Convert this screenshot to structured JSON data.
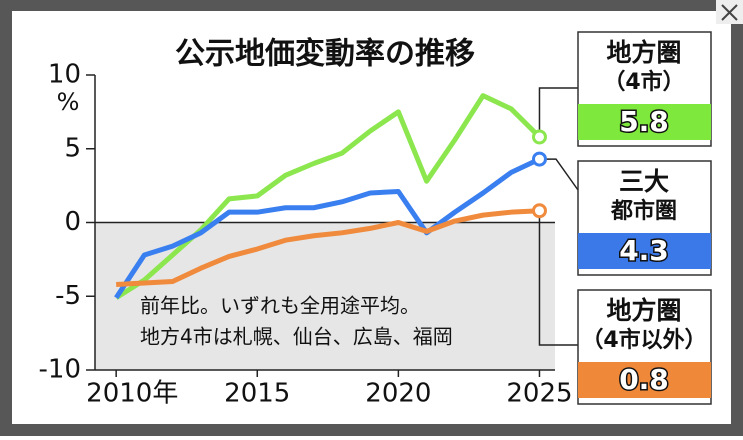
{
  "chart_data": {
    "type": "line",
    "title": "公示地価変動率の推移",
    "y_unit": "%",
    "notes": [
      "前年比。いずれも全用途平均。",
      "地方4市は札幌、仙台、広島、福岡"
    ],
    "x": [
      2010,
      2011,
      2012,
      2013,
      2014,
      2015,
      2016,
      2017,
      2018,
      2019,
      2020,
      2021,
      2022,
      2023,
      2024,
      2025
    ],
    "xlim": [
      2009.25,
      2025.55
    ],
    "xticks": [
      {
        "value": 2010,
        "label": "2010年"
      },
      2015,
      2020,
      2025
    ],
    "ylim": [
      -10,
      10
    ],
    "yticks": [
      -10,
      -5,
      0,
      5,
      10
    ],
    "shade_negative": true,
    "series": [
      {
        "name": [
          "地方圏",
          "（4市）"
        ],
        "color": "#8ce64e",
        "band_color": "#7ee83c",
        "values": [
          -5.1,
          -3.9,
          -2.2,
          -0.5,
          1.6,
          1.8,
          3.2,
          4.0,
          4.7,
          6.2,
          7.5,
          2.8,
          5.6,
          8.6,
          7.7,
          5.8
        ]
      },
      {
        "name": [
          "三大",
          "都市圏"
        ],
        "color": "#3a7ff0",
        "band_color": "#3b78e8",
        "values": [
          -5.1,
          -2.2,
          -1.6,
          -0.7,
          0.7,
          0.7,
          1.0,
          1.0,
          1.4,
          2.0,
          2.1,
          -0.7,
          0.7,
          2.0,
          3.4,
          4.3
        ]
      },
      {
        "name": [
          "地方圏",
          "（4市以外）"
        ],
        "color": "#f08a3c",
        "band_color": "#f0883a",
        "values": [
          -4.2,
          -4.1,
          -4.0,
          -3.1,
          -2.3,
          -1.8,
          -1.2,
          -0.9,
          -0.7,
          -0.4,
          0.0,
          -0.6,
          0.1,
          0.5,
          0.7,
          0.8
        ]
      }
    ]
  }
}
